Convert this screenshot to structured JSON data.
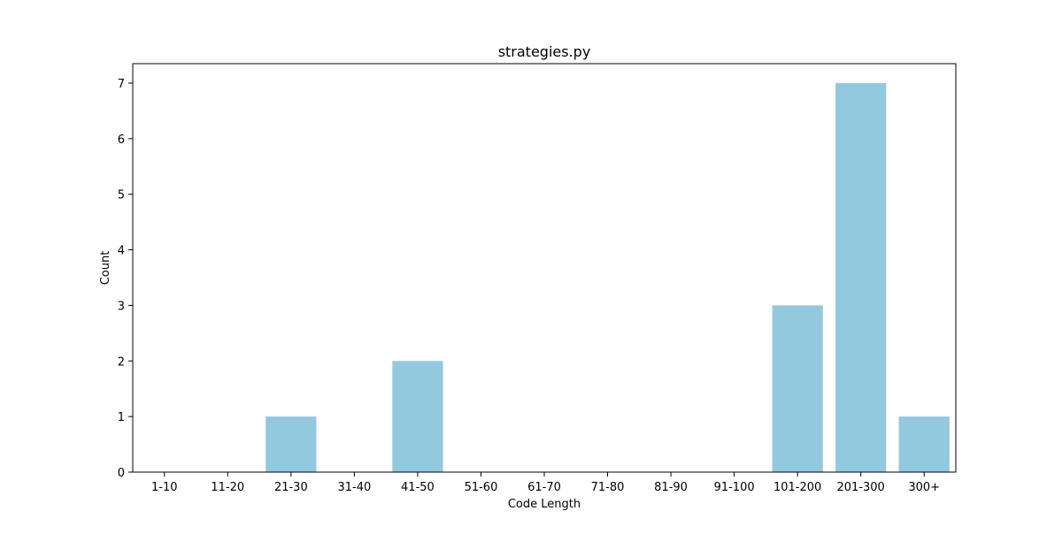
{
  "chart_data": {
    "type": "bar",
    "title": "strategies.py",
    "xlabel": "Code Length",
    "ylabel": "Count",
    "categories": [
      "1-10",
      "11-20",
      "21-30",
      "31-40",
      "41-50",
      "51-60",
      "61-70",
      "71-80",
      "81-90",
      "91-100",
      "101-200",
      "201-300",
      "300+"
    ],
    "values": [
      0,
      0,
      1,
      0,
      2,
      0,
      0,
      0,
      0,
      0,
      3,
      7,
      1
    ],
    "ylim": [
      0,
      7.35
    ],
    "yticks": [
      0,
      1,
      2,
      3,
      4,
      5,
      6,
      7
    ],
    "grid": false,
    "bar_color": "#92c9de"
  }
}
